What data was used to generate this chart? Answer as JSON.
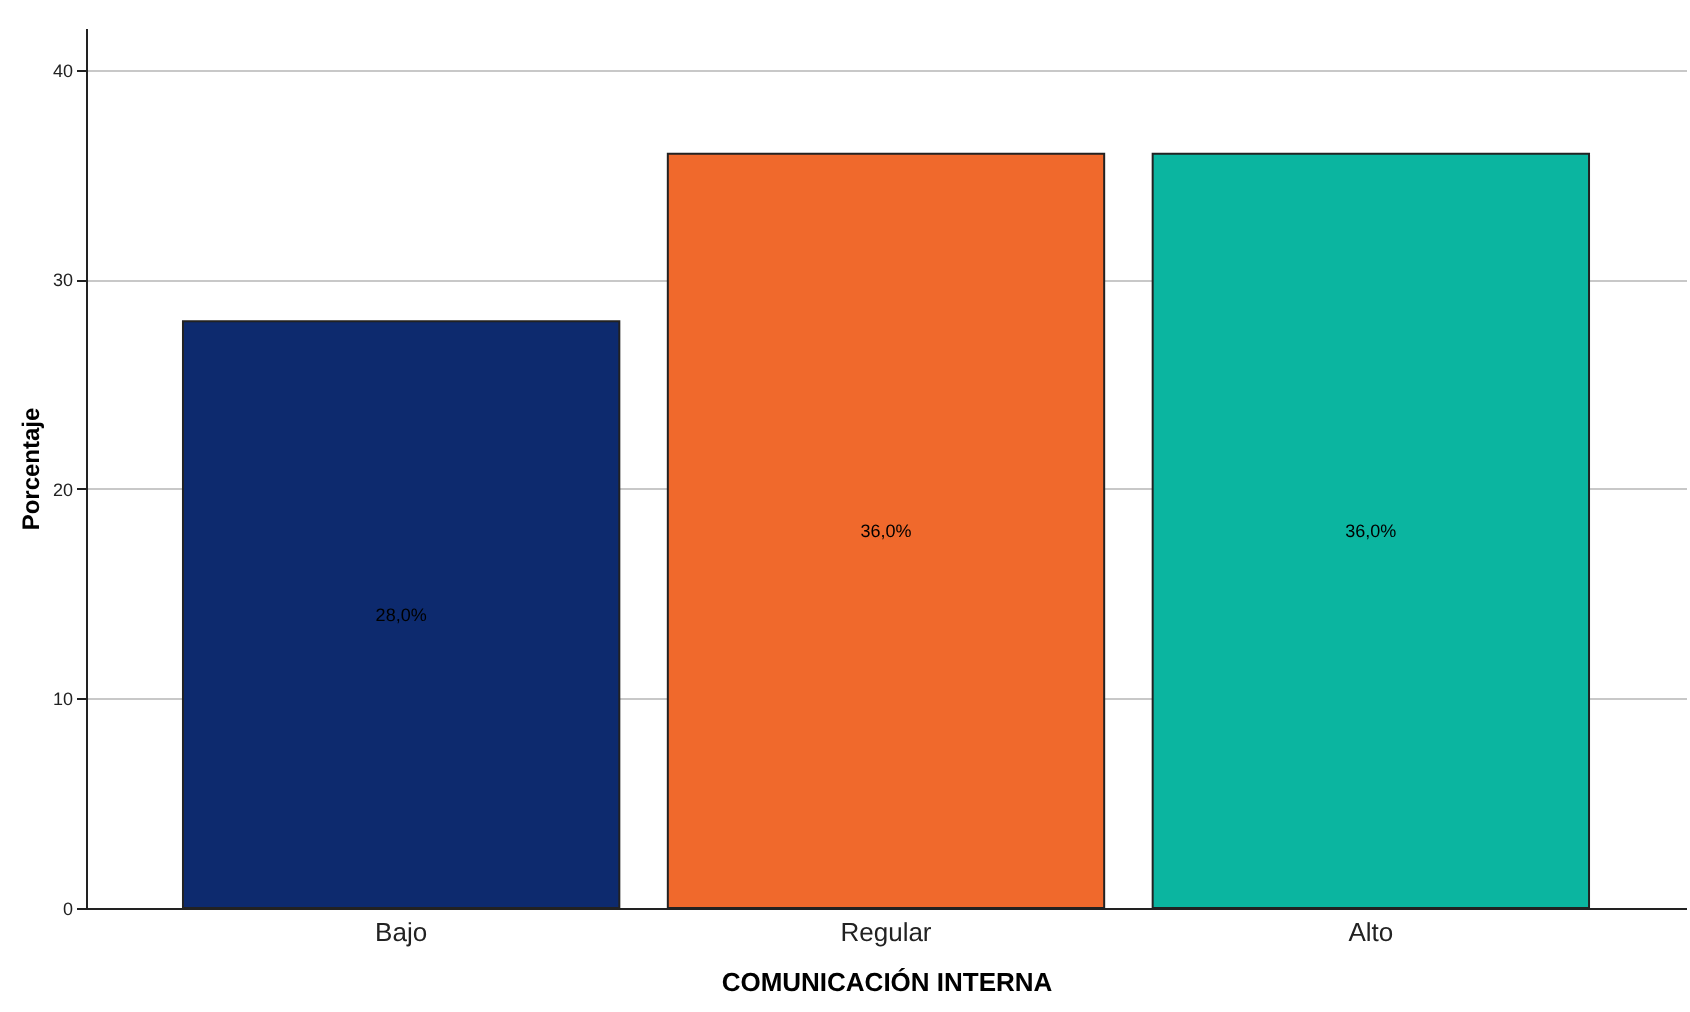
{
  "chart_data": {
    "type": "bar",
    "xlabel": "COMUNICACIÓN INTERNA",
    "ylabel": "Porcentaje",
    "categories": [
      "Bajo",
      "Regular",
      "Alto"
    ],
    "values": [
      28,
      36,
      36
    ],
    "colors": [
      "#0d2a6e",
      "#f0692c",
      "#0bb5a0"
    ],
    "value_labels": [
      "28,0%",
      "36,0%",
      "36,0%"
    ],
    "ylim": [
      0,
      42
    ],
    "yticks": [
      0,
      10,
      20,
      30,
      40
    ],
    "grid": "y"
  }
}
